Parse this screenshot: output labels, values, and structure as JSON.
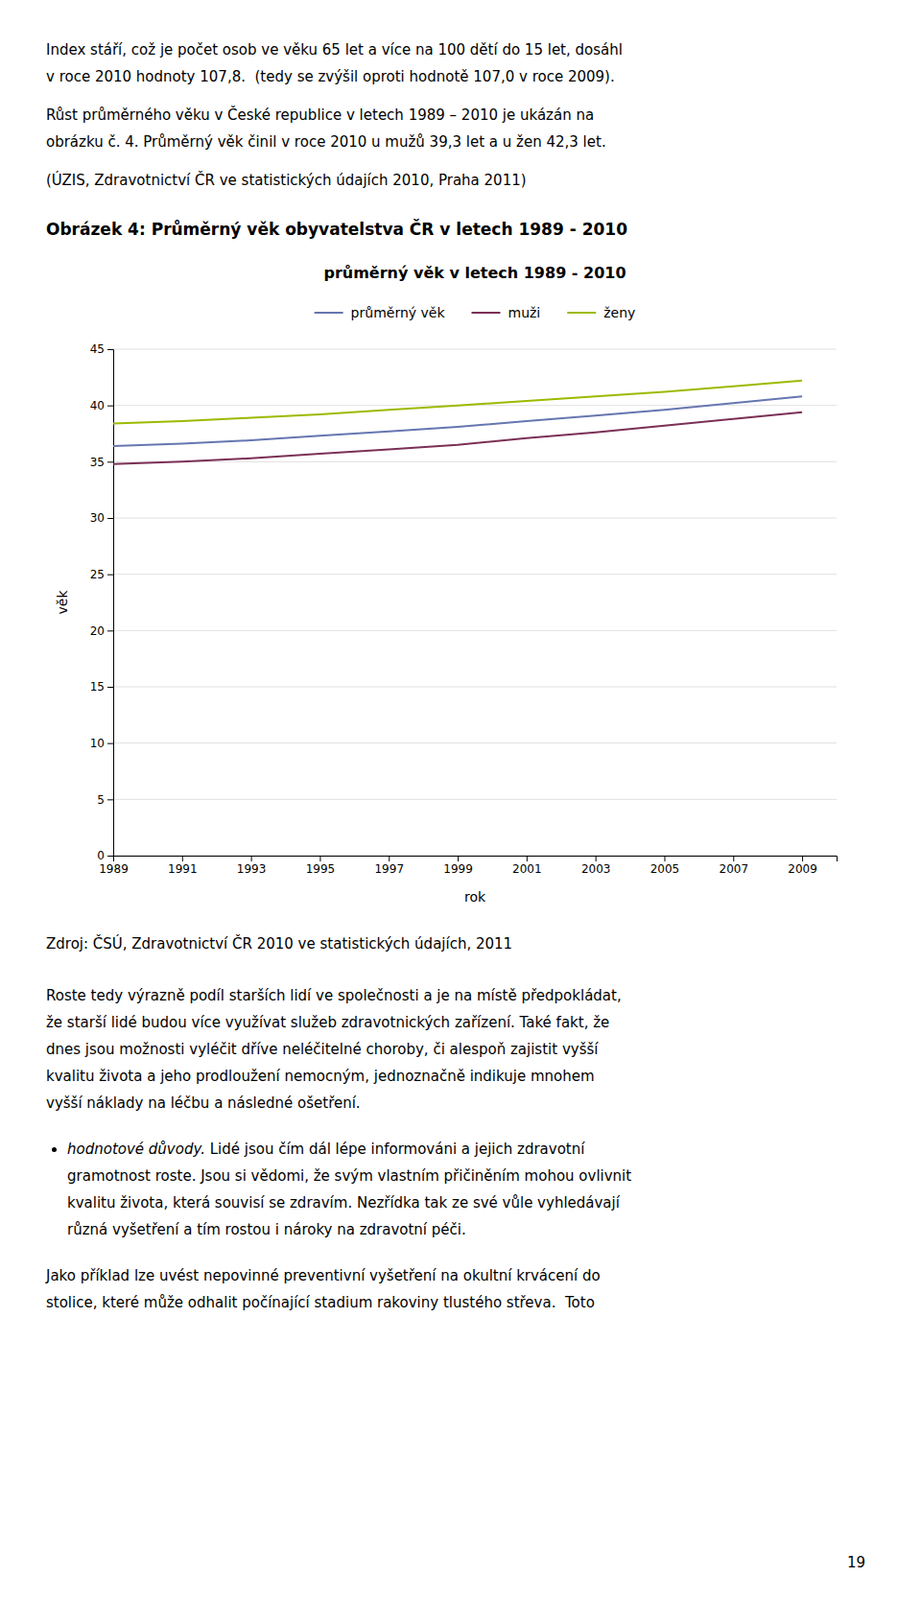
{
  "chart_data": {
    "type": "line",
    "title": "průměrný věk v letech 1989 - 2010",
    "x_label": "rok",
    "y_label": "věk",
    "x": [
      1989,
      1991,
      1993,
      1995,
      1997,
      1999,
      2001,
      2003,
      2005,
      2007,
      2009
    ],
    "xlim": [
      1989,
      2010
    ],
    "xticks": [
      1989,
      1991,
      1993,
      1995,
      1997,
      1999,
      2001,
      2003,
      2005,
      2007,
      2009
    ],
    "ylim": [
      0,
      45
    ],
    "yticks": [
      0,
      5,
      10,
      15,
      20,
      25,
      30,
      35,
      40,
      45
    ],
    "grid": true,
    "legend": "top",
    "series": [
      {
        "name": "průměrný věk",
        "color": "#6676b0",
        "values": [
          36.4,
          36.6,
          36.9,
          37.3,
          37.7,
          38.1,
          38.6,
          39.1,
          39.6,
          40.2,
          40.8
        ]
      },
      {
        "name": "muži",
        "color": "#7b3055",
        "values": [
          34.8,
          35.0,
          35.3,
          35.7,
          36.1,
          36.5,
          37.1,
          37.6,
          38.2,
          38.8,
          39.4
        ]
      },
      {
        "name": "ženy",
        "color": "#9cba00",
        "values": [
          38.4,
          38.6,
          38.9,
          39.2,
          39.6,
          40.0,
          40.4,
          40.8,
          41.2,
          41.7,
          42.2
        ]
      }
    ]
  },
  "page": {
    "para1_lines": [
      "Index stáří, což je počet osob ve věku 65 let a více na 100 dětí do 15 let, dosáhl",
      "v roce 2010 hodnoty 107,8.  (tedy se zvýšil oproti hodnotě 107,0 v roce 2009)."
    ],
    "para2_lines": [
      "Růst průměrného věku v České republice v letech 1989 – 2010 je ukázán na",
      "obrázku č. 4. Průměrný věk činil v roce 2010 u mužů 39,3 let a u žen 42,3 let."
    ],
    "text_above": "(ÚZIS, Zdravotnictví ČR ve statistických údajích 2010, Praha 2011)",
    "title_bold": "Obrázek 4: Průměrný věk obyvatelstva ČR v letech 1989 - 2010",
    "text_below": "Zdroj: ČSÚ, Zdravotnictví ČR 2010 ve statistických údajích, 2011",
    "bottom_para1": [
      "Roste tedy výrazně podíl starších lidí ve společnosti a je na místě předpokládat,",
      "že starší lidé budou více využívat služeb zdravotnických zařízení. Také fakt, že",
      "dnes jsou možnosti vyléčit dříve neléčitelné choroby, či alespoň zajistit vyšší",
      "kvalitu života a jeho prodloužení nemocným, jednoznačně indikuje mnohem",
      "vyšší náklady na léčbu a následné ošetření."
    ],
    "bullet_label": "hodnotové důvody.",
    "bullet_rest": " Lidé jsou čím dál lépe informováni a jejich zdravotní",
    "bullet_lines": [
      "gramotnost roste. Jsou si vědomi, že svým vlastním přičiněním mohou ovlivnit",
      "kvalitu života, která souvisí se zdravím. Nezřídka tak ze své vůle vyhledávají",
      "různá vyšetření a tím rostou i nároky na zdravotní péči."
    ],
    "last_para": [
      "Jako příklad lze uvést nepovinné preventivní vyšetření na okultní krvácení do",
      "stolice, které může odhalit počínající stadium rakoviny tlustého střeva.  Toto"
    ],
    "page_number": "19"
  }
}
